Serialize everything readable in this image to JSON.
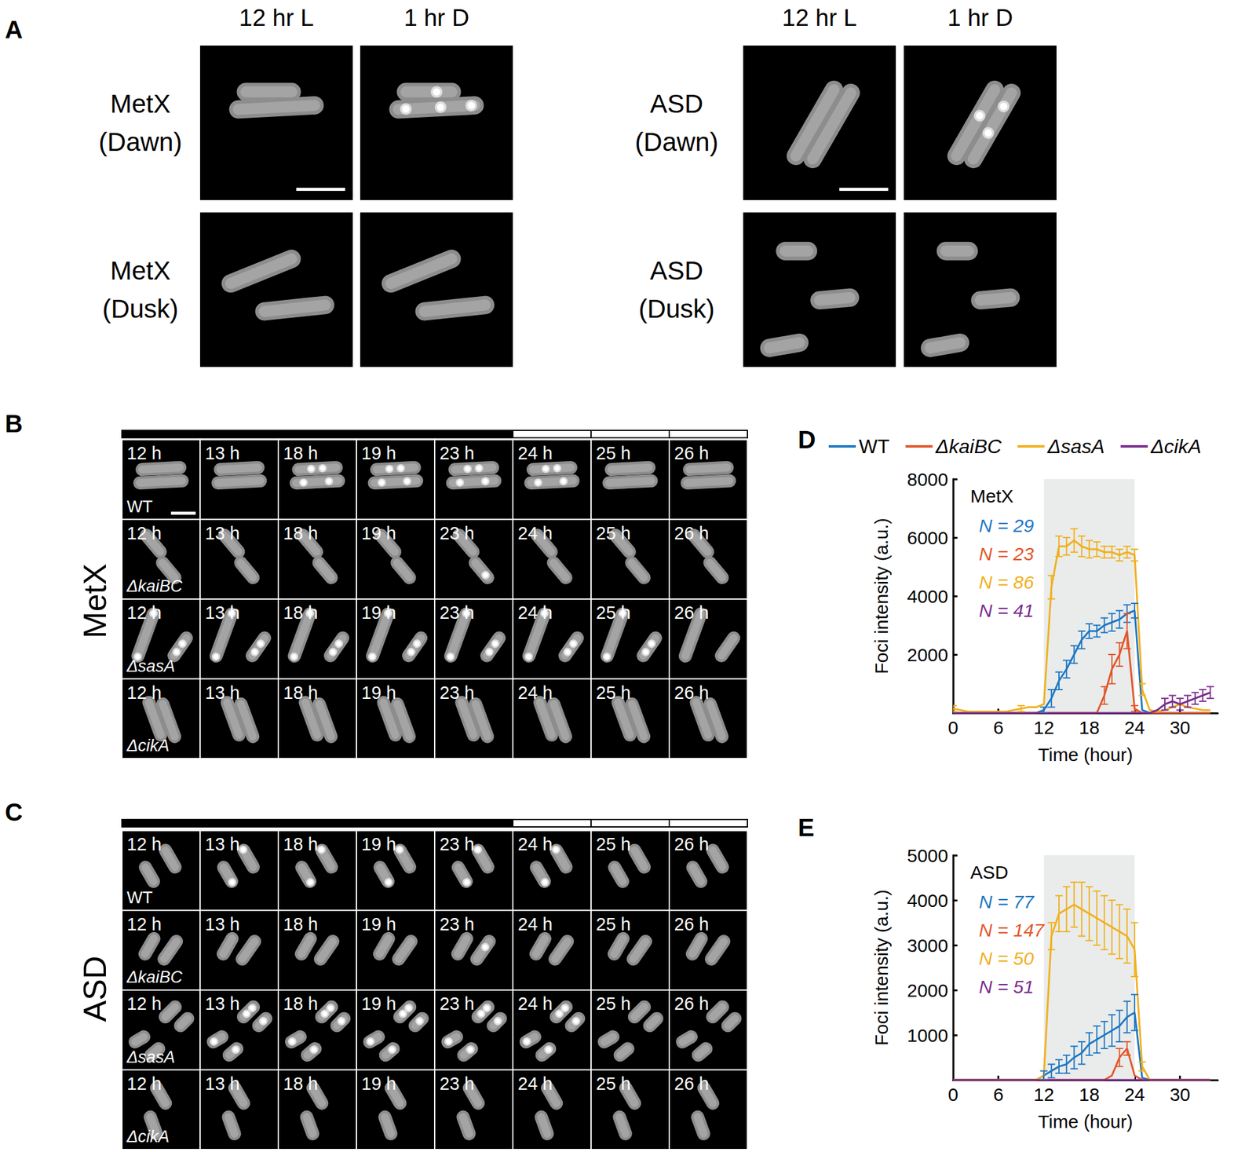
{
  "panels": [
    {
      "label": "A",
      "groups": [
        {
          "columns": [
            "12 hr L",
            "1 hr D"
          ],
          "rows": [
            {
              "label": [
                "MetX",
                "(Dawn)"
              ]
            },
            {
              "label": [
                "MetX",
                "(Dusk)"
              ]
            }
          ]
        },
        {
          "columns": [
            "12 hr L",
            "1 hr D"
          ],
          "rows": [
            {
              "label": [
                "ASD",
                "(Dawn)"
              ]
            },
            {
              "label": [
                "ASD",
                "(Dusk)"
              ]
            }
          ]
        }
      ]
    },
    {
      "label": "B",
      "title": "MetX",
      "columns": [
        "12 h",
        "13 h",
        "18 h",
        "19 h",
        "23 h",
        "24 h",
        "25 h",
        "26 h"
      ],
      "bar_colors": [
        "black",
        "black",
        "black",
        "black",
        "black",
        "white",
        "white",
        "white"
      ],
      "rows": [
        "WT",
        "ΔkaiBC",
        "ΔsasA",
        "ΔcikA"
      ]
    },
    {
      "label": "C",
      "title": "ASD",
      "columns": [
        "12 h",
        "13 h",
        "18 h",
        "19 h",
        "23 h",
        "24 h",
        "25 h",
        "26 h"
      ],
      "bar_colors": [
        "black",
        "black",
        "black",
        "black",
        "black",
        "white",
        "white",
        "white"
      ],
      "rows": [
        "WT",
        "ΔkaiBC",
        "ΔsasA",
        "ΔcikA"
      ]
    }
  ],
  "chart_data": [
    {
      "panel": "D",
      "type": "line",
      "title": "MetX",
      "x_label": "Time (hour)",
      "y_label": "Foci intensity (a.u.)",
      "x": [
        0,
        1,
        2,
        3,
        4,
        5,
        6,
        7,
        8,
        9,
        10,
        11,
        12,
        13,
        14,
        15,
        16,
        17,
        18,
        19,
        20,
        21,
        22,
        23,
        24,
        25,
        26,
        27,
        28,
        29,
        30,
        31,
        32,
        33,
        34
      ],
      "xlim": [
        0,
        35
      ],
      "xticks": [
        0,
        6,
        12,
        18,
        24,
        30
      ],
      "ylim": [
        0,
        8000
      ],
      "yticks": [
        2000,
        4000,
        6000,
        8000
      ],
      "grid": false,
      "legend": "top",
      "dark_period": [
        12,
        24
      ],
      "series": [
        {
          "name": "WT",
          "color": "#1f77c4",
          "annotation": "N = 29",
          "values": [
            0,
            0,
            0,
            0,
            0,
            0,
            0,
            0,
            0,
            0,
            0,
            0,
            100,
            500,
            1100,
            1500,
            2000,
            2500,
            2800,
            2800,
            3000,
            3100,
            3200,
            3400,
            3500,
            100,
            0,
            0,
            0,
            0,
            0,
            0,
            0,
            0,
            0
          ],
          "errors": [
            null,
            null,
            null,
            null,
            null,
            null,
            null,
            null,
            null,
            null,
            null,
            null,
            100,
            300,
            300,
            300,
            300,
            300,
            250,
            200,
            250,
            300,
            300,
            300,
            250,
            null,
            null,
            null,
            null,
            null,
            null,
            null,
            null,
            null,
            null
          ]
        },
        {
          "name": "ΔkaiBC",
          "color": "#e2572b",
          "annotation": "N = 23",
          "values": [
            0,
            0,
            0,
            0,
            0,
            0,
            0,
            0,
            0,
            0,
            0,
            0,
            0,
            0,
            0,
            0,
            0,
            0,
            0,
            0,
            600,
            1500,
            2000,
            2800,
            150,
            0,
            0,
            0,
            0,
            0,
            0,
            0,
            0,
            0,
            0
          ],
          "errors": [
            null,
            null,
            null,
            null,
            null,
            null,
            null,
            null,
            null,
            null,
            null,
            null,
            null,
            null,
            null,
            null,
            null,
            null,
            null,
            null,
            300,
            500,
            400,
            600,
            100,
            null,
            null,
            null,
            null,
            null,
            null,
            null,
            null,
            null,
            null
          ]
        },
        {
          "name": "ΔsasA",
          "color": "#f2b01e",
          "annotation": "N = 86",
          "values": [
            150,
            100,
            50,
            50,
            50,
            50,
            50,
            50,
            100,
            150,
            200,
            200,
            300,
            4300,
            5700,
            5700,
            5900,
            5700,
            5600,
            5600,
            5500,
            5500,
            5400,
            5500,
            5400,
            800,
            100,
            50,
            100,
            200,
            300,
            200,
            150,
            100,
            100
          ],
          "errors": [
            100,
            null,
            null,
            null,
            null,
            null,
            null,
            null,
            null,
            100,
            null,
            null,
            null,
            400,
            350,
            300,
            400,
            350,
            300,
            250,
            200,
            200,
            200,
            200,
            200,
            200,
            null,
            null,
            null,
            null,
            null,
            null,
            null,
            null,
            null
          ]
        },
        {
          "name": "ΔcikA",
          "color": "#7b2d8e",
          "annotation": "N = 41",
          "values": [
            0,
            0,
            0,
            0,
            0,
            0,
            0,
            0,
            0,
            0,
            0,
            0,
            0,
            0,
            0,
            0,
            0,
            0,
            0,
            0,
            0,
            0,
            0,
            0,
            0,
            0,
            0,
            100,
            300,
            400,
            300,
            400,
            500,
            600,
            700
          ],
          "errors": [
            null,
            null,
            null,
            null,
            null,
            null,
            null,
            null,
            null,
            null,
            null,
            null,
            null,
            null,
            null,
            null,
            null,
            null,
            null,
            null,
            null,
            null,
            null,
            null,
            null,
            null,
            null,
            null,
            200,
            200,
            200,
            200,
            200,
            200,
            200
          ]
        }
      ]
    },
    {
      "panel": "E",
      "type": "line",
      "title": "ASD",
      "x_label": "Time (hour)",
      "y_label": "Foci intensity (a.u.)",
      "x": [
        0,
        1,
        2,
        3,
        4,
        5,
        6,
        7,
        8,
        9,
        10,
        11,
        12,
        13,
        14,
        15,
        16,
        17,
        18,
        19,
        20,
        21,
        22,
        23,
        24,
        25,
        26,
        27,
        28,
        29,
        30,
        31,
        32,
        33,
        34
      ],
      "xlim": [
        0,
        35
      ],
      "xticks": [
        0,
        6,
        12,
        18,
        24,
        30
      ],
      "ylim": [
        0,
        5000
      ],
      "yticks": [
        1000,
        2000,
        3000,
        4000,
        5000
      ],
      "grid": false,
      "dark_period": [
        12,
        24
      ],
      "series": [
        {
          "name": "WT",
          "color": "#1f77c4",
          "annotation": "N = 77",
          "values": [
            0,
            0,
            0,
            0,
            0,
            0,
            0,
            0,
            0,
            0,
            0,
            0,
            100,
            200,
            300,
            350,
            500,
            600,
            800,
            900,
            1000,
            1100,
            1200,
            1400,
            1500,
            50,
            0,
            0,
            0,
            0,
            0,
            0,
            0,
            0,
            0
          ],
          "errors": [
            null,
            null,
            null,
            null,
            null,
            null,
            null,
            null,
            null,
            null,
            null,
            null,
            100,
            150,
            150,
            200,
            250,
            250,
            250,
            300,
            300,
            350,
            350,
            350,
            400,
            null,
            null,
            null,
            null,
            null,
            null,
            null,
            null,
            null,
            null
          ]
        },
        {
          "name": "ΔkaiBC",
          "color": "#e2572b",
          "annotation": "N = 147",
          "values": [
            0,
            0,
            0,
            0,
            0,
            0,
            0,
            0,
            0,
            0,
            0,
            0,
            0,
            0,
            0,
            0,
            0,
            0,
            0,
            0,
            0,
            100,
            500,
            700,
            100,
            0,
            0,
            0,
            0,
            0,
            0,
            0,
            0,
            0,
            0
          ],
          "errors": [
            null,
            null,
            null,
            null,
            null,
            null,
            null,
            null,
            null,
            null,
            null,
            null,
            null,
            null,
            null,
            null,
            null,
            null,
            null,
            null,
            null,
            null,
            200,
            150,
            null,
            null,
            null,
            null,
            null,
            null,
            null,
            null,
            null,
            null,
            null
          ]
        },
        {
          "name": "ΔsasA",
          "color": "#f2b01e",
          "annotation": "N = 50",
          "values": [
            0,
            0,
            0,
            0,
            0,
            0,
            0,
            0,
            0,
            0,
            0,
            0,
            100,
            3200,
            3700,
            3800,
            3900,
            3800,
            3700,
            3600,
            3500,
            3400,
            3300,
            3200,
            2900,
            300,
            0,
            0,
            0,
            0,
            0,
            0,
            0,
            0,
            0
          ],
          "errors": [
            null,
            null,
            null,
            null,
            null,
            null,
            null,
            null,
            null,
            null,
            null,
            null,
            null,
            300,
            400,
            500,
            500,
            600,
            600,
            600,
            600,
            600,
            600,
            600,
            600,
            100,
            null,
            null,
            null,
            null,
            null,
            null,
            null,
            null,
            null
          ]
        },
        {
          "name": "ΔcikA",
          "color": "#7b2d8e",
          "annotation": "N = 51",
          "values": [
            0,
            0,
            0,
            0,
            0,
            0,
            0,
            0,
            0,
            0,
            0,
            0,
            0,
            0,
            0,
            0,
            0,
            0,
            0,
            0,
            0,
            0,
            0,
            0,
            0,
            0,
            0,
            0,
            0,
            0,
            0,
            0,
            0,
            0,
            0
          ],
          "errors": [
            null,
            null,
            null,
            null,
            null,
            null,
            null,
            null,
            null,
            null,
            null,
            null,
            null,
            null,
            null,
            null,
            null,
            null,
            null,
            null,
            null,
            null,
            null,
            null,
            null,
            null,
            null,
            null,
            null,
            null,
            null,
            null,
            null,
            null,
            null
          ]
        }
      ]
    }
  ]
}
